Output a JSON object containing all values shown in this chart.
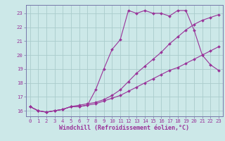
{
  "title": "",
  "xlabel": "Windchill (Refroidissement éolien,°C)",
  "bg_color": "#cce8e8",
  "line_color": "#993399",
  "grid_color": "#aacccc",
  "spine_color": "#7777aa",
  "xlim": [
    -0.5,
    23.5
  ],
  "ylim": [
    15.6,
    23.6
  ],
  "xticks": [
    0,
    1,
    2,
    3,
    4,
    5,
    6,
    7,
    8,
    9,
    10,
    11,
    12,
    13,
    14,
    15,
    16,
    17,
    18,
    19,
    20,
    21,
    22,
    23
  ],
  "yticks": [
    16,
    17,
    18,
    19,
    20,
    21,
    22,
    23
  ],
  "line1_x": [
    0,
    1,
    2,
    3,
    4,
    5,
    6,
    7,
    8,
    9,
    10,
    11,
    12,
    13,
    14,
    15,
    16,
    17,
    18,
    19,
    20,
    21,
    22,
    23
  ],
  "line1_y": [
    16.3,
    16.0,
    15.9,
    16.0,
    16.1,
    16.3,
    16.3,
    16.4,
    17.5,
    19.0,
    20.4,
    21.1,
    23.2,
    23.0,
    23.2,
    23.0,
    23.0,
    22.8,
    23.2,
    23.2,
    21.8,
    20.0,
    19.3,
    18.9
  ],
  "line2_x": [
    0,
    1,
    2,
    3,
    4,
    5,
    6,
    7,
    8,
    9,
    10,
    11,
    12,
    13,
    14,
    15,
    16,
    17,
    18,
    19,
    20,
    21,
    22,
    23
  ],
  "line2_y": [
    16.3,
    16.0,
    15.9,
    16.0,
    16.1,
    16.3,
    16.3,
    16.4,
    16.5,
    16.7,
    16.9,
    17.1,
    17.4,
    17.7,
    18.0,
    18.3,
    18.6,
    18.9,
    19.1,
    19.4,
    19.7,
    20.0,
    20.3,
    20.6
  ],
  "line3_x": [
    0,
    1,
    2,
    3,
    4,
    5,
    6,
    7,
    8,
    9,
    10,
    11,
    12,
    13,
    14,
    15,
    16,
    17,
    18,
    19,
    20,
    21,
    22,
    23
  ],
  "line3_y": [
    16.3,
    16.0,
    15.9,
    16.0,
    16.1,
    16.3,
    16.4,
    16.5,
    16.6,
    16.8,
    17.1,
    17.5,
    18.1,
    18.7,
    19.2,
    19.7,
    20.2,
    20.8,
    21.3,
    21.8,
    22.2,
    22.5,
    22.7,
    22.9
  ],
  "marker": "D",
  "markersize": 2.0,
  "linewidth": 0.8,
  "tick_fontsize": 5.2,
  "label_fontsize": 6.0
}
